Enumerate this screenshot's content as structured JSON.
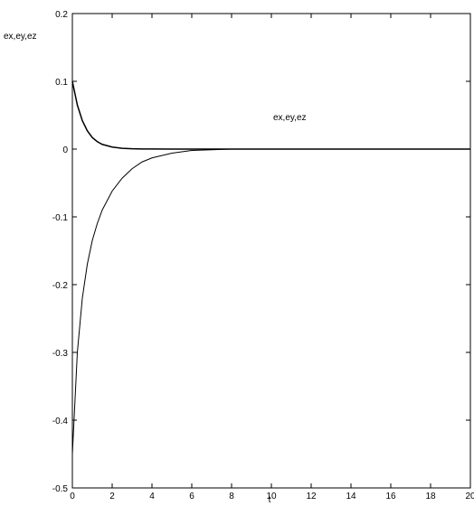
{
  "chart_data": {
    "type": "line",
    "title": "",
    "xlabel": "t",
    "ylabel": "ex,ey,ez",
    "annotation": "ex,ey,ez",
    "xlim": [
      0,
      20
    ],
    "ylim": [
      -0.5,
      0.2
    ],
    "xticks": [
      0,
      2,
      4,
      6,
      8,
      10,
      12,
      14,
      16,
      18,
      20
    ],
    "yticks": [
      -0.5,
      -0.4,
      -0.3,
      -0.2,
      -0.1,
      0,
      0.1,
      0.2
    ],
    "xtick_labels": [
      "0",
      "2",
      "4",
      "6",
      "8",
      "10",
      "12",
      "14",
      "16",
      "18",
      "20"
    ],
    "ytick_labels": [
      "-0.5",
      "-0.4",
      "-0.3",
      "-0.2",
      "-0.1",
      "0",
      "0.1",
      "0.2"
    ],
    "grid": false,
    "series": [
      {
        "color": "#000000",
        "x": [
          0,
          0.25,
          0.5,
          0.75,
          1,
          1.25,
          1.5,
          2,
          2.5,
          3,
          3.5,
          4,
          5,
          6,
          8,
          10,
          14,
          20
        ],
        "y": [
          0.1,
          0.065,
          0.042,
          0.027,
          0.017,
          0.011,
          0.007,
          0.003,
          0.0012,
          0.0005,
          0.0002,
          0.0001,
          0,
          0,
          0,
          0,
          0,
          0
        ]
      },
      {
        "color": "#000000",
        "x": [
          0,
          0.25,
          0.5,
          0.75,
          1,
          1.25,
          1.5,
          2,
          2.5,
          3,
          3.5,
          4,
          5,
          6,
          7,
          8,
          10,
          14,
          20
        ],
        "y": [
          -0.45,
          -0.3,
          -0.22,
          -0.17,
          -0.135,
          -0.11,
          -0.09,
          -0.062,
          -0.043,
          -0.029,
          -0.019,
          -0.013,
          -0.006,
          -0.002,
          -0.001,
          0,
          0,
          0,
          0
        ]
      }
    ]
  }
}
